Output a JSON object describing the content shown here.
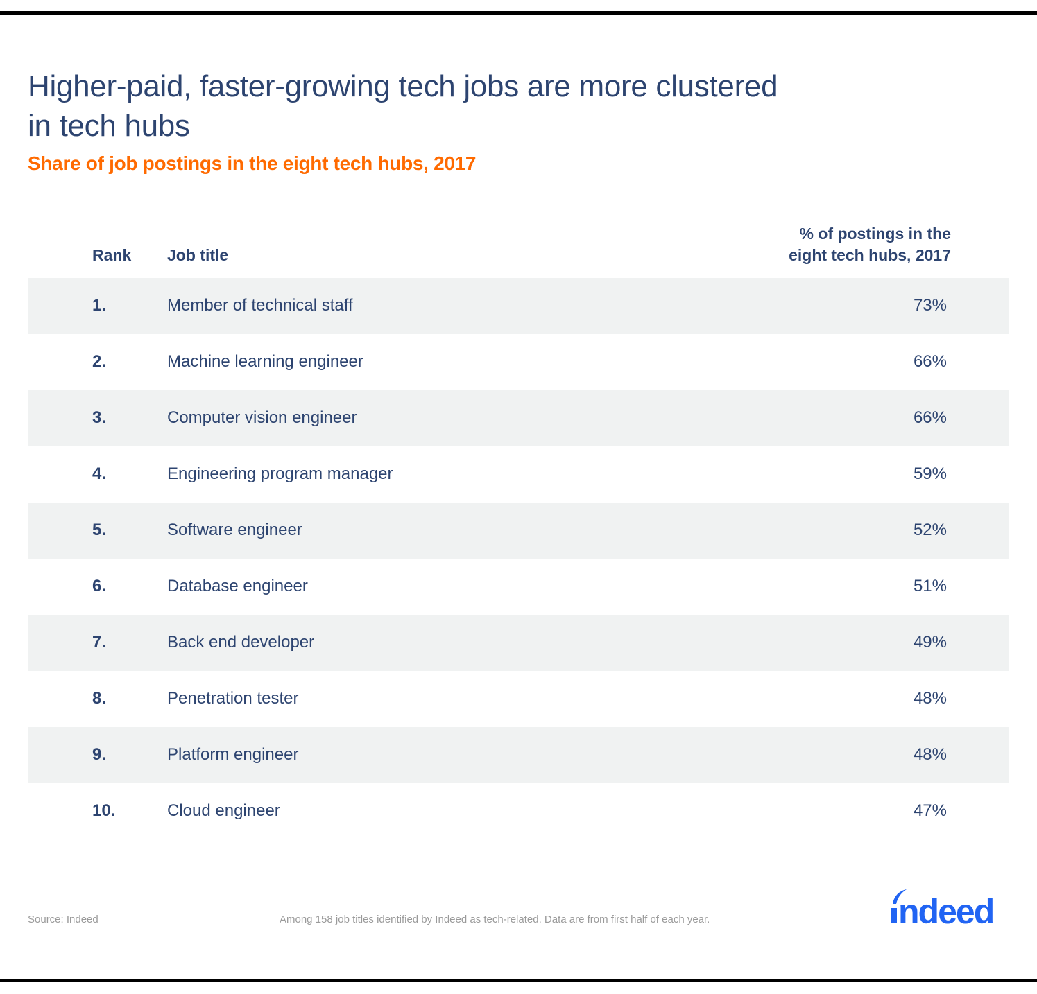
{
  "title": "Higher-paid, faster-growing tech jobs are more clustered in tech hubs",
  "subtitle": "Share of job postings in the eight tech hubs, 2017",
  "colors": {
    "text": "#2d4470",
    "subtitle": "#ff6a00",
    "row_shade": "#f0f2f2",
    "logo": "#2164f3"
  },
  "chart_data": {
    "type": "table",
    "columns": [
      "Rank",
      "Job title",
      "% of postings in the eight tech hubs, 2017"
    ],
    "rows": [
      {
        "rank": "1.",
        "job": "Member of technical staff",
        "value": "73%"
      },
      {
        "rank": "2.",
        "job": "Machine learning engineer",
        "value": "66%"
      },
      {
        "rank": "3.",
        "job": "Computer vision engineer",
        "value": "66%"
      },
      {
        "rank": "4.",
        "job": "Engineering program manager",
        "value": "59%"
      },
      {
        "rank": "5.",
        "job": "Software engineer",
        "value": "52%"
      },
      {
        "rank": "6.",
        "job": "Database engineer",
        "value": "51%"
      },
      {
        "rank": "7.",
        "job": "Back end developer",
        "value": "49%"
      },
      {
        "rank": "8.",
        "job": "Penetration tester",
        "value": "48%"
      },
      {
        "rank": "9.",
        "job": "Platform engineer",
        "value": "48%"
      },
      {
        "rank": "10.",
        "job": "Cloud engineer",
        "value": "47%"
      }
    ]
  },
  "header": {
    "rank": "Rank",
    "job": "Job title",
    "value_line1": "% of postings in the",
    "value_line2": "eight tech hubs, 2017"
  },
  "footer": {
    "source": "Source: Indeed",
    "note": "Among 158 job titles identified by Indeed as tech-related. Data are from first half of each year.",
    "logo": "indeed"
  }
}
